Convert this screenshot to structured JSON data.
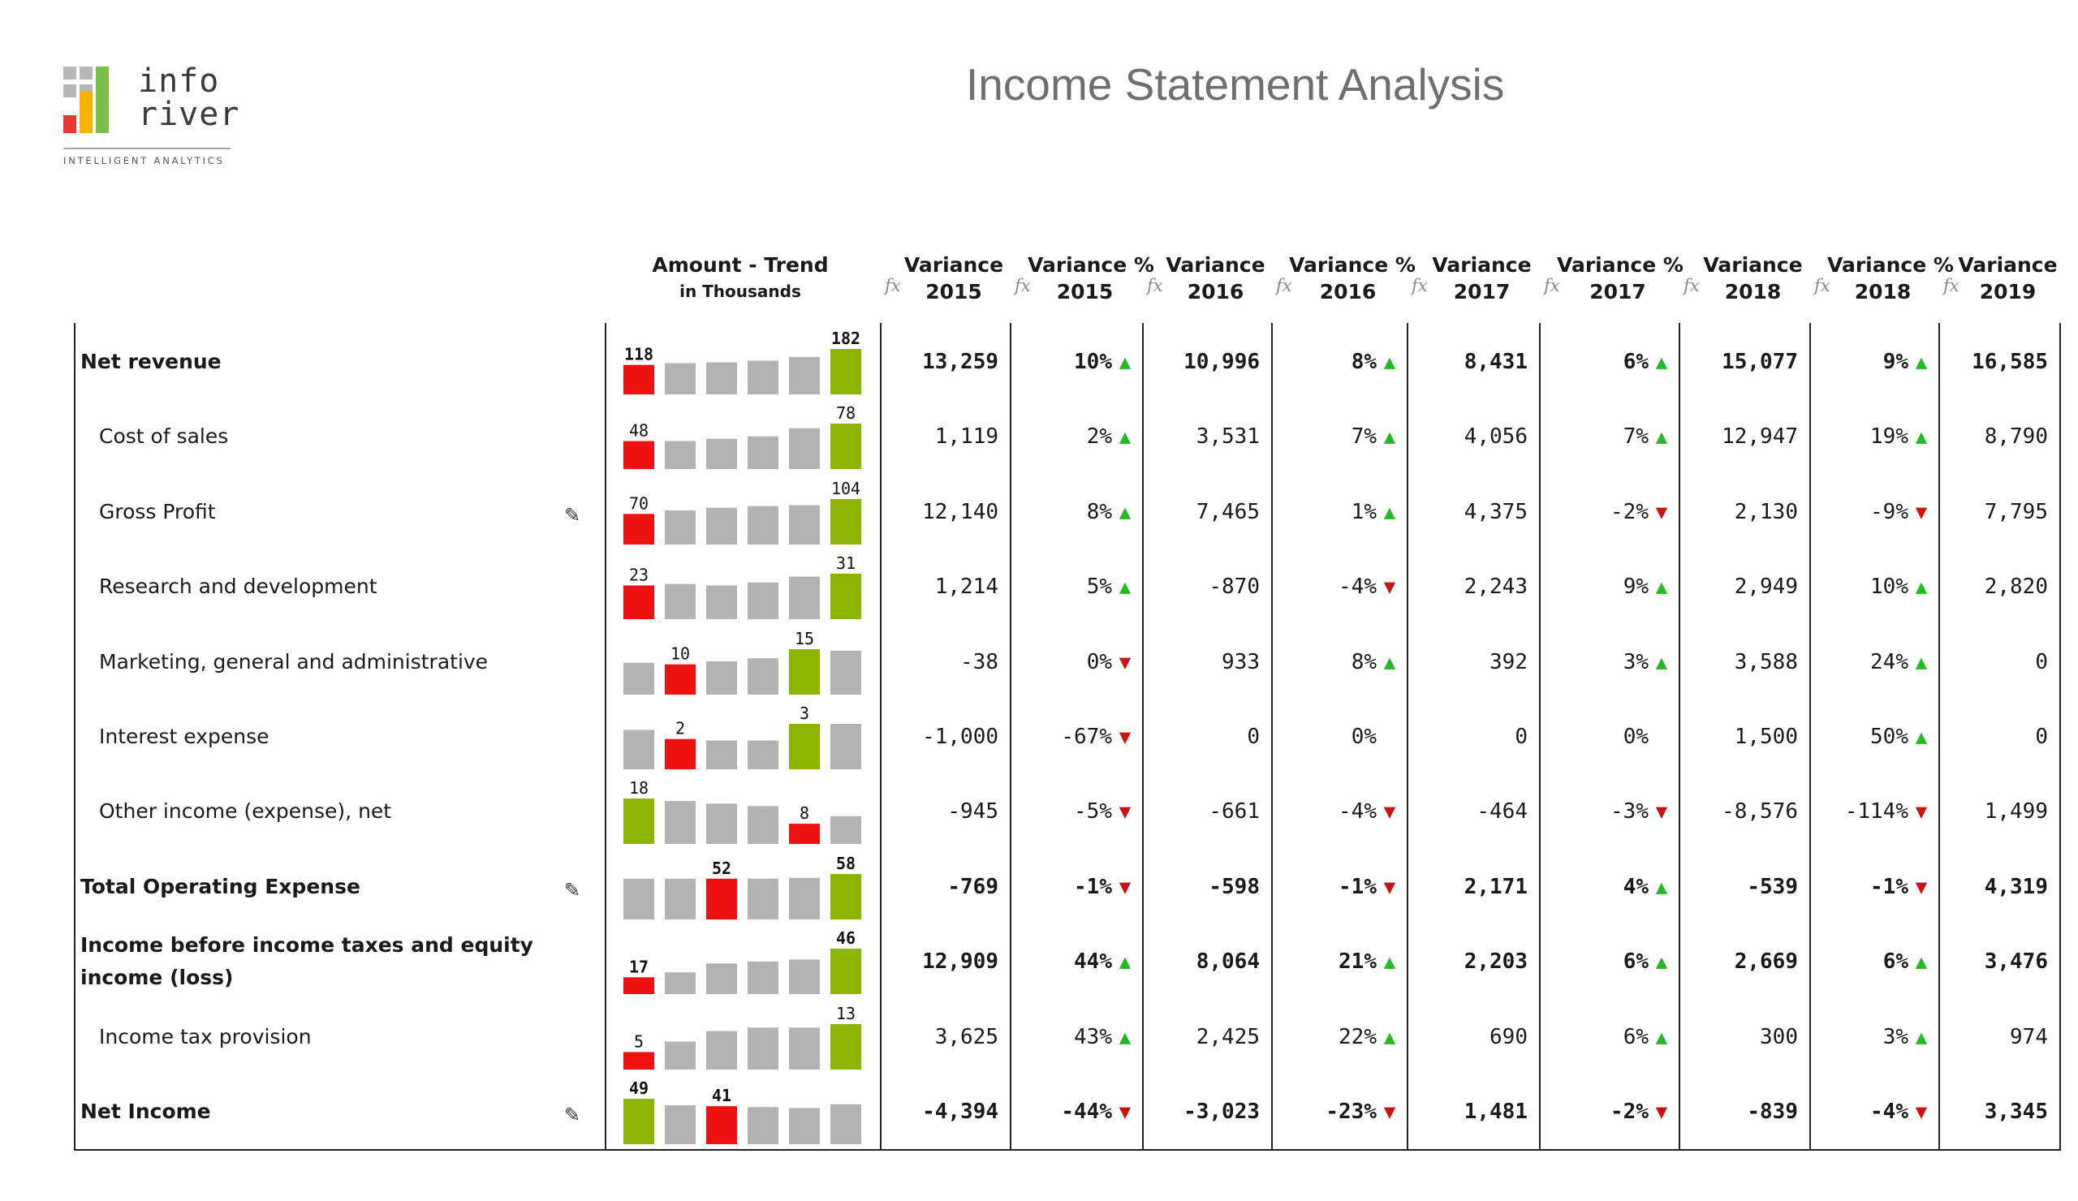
{
  "logo": {
    "word_line1": "info",
    "word_line2": "river",
    "tagline": "INTELLIGENT ANALYTICS"
  },
  "title": "Income Statement Analysis",
  "header": {
    "trend_label": "Amount - Trend",
    "trend_sublabel": "in Thousands",
    "fx_icon": "fx",
    "columns": [
      {
        "line1": "Variance",
        "line2": "2015"
      },
      {
        "line1": "Variance %",
        "line2": "2015"
      },
      {
        "line1": "Variance",
        "line2": "2016"
      },
      {
        "line1": "Variance %",
        "line2": "2016"
      },
      {
        "line1": "Variance",
        "line2": "2017"
      },
      {
        "line1": "Variance %",
        "line2": "2017"
      },
      {
        "line1": "Variance",
        "line2": "2018"
      },
      {
        "line1": "Variance %",
        "line2": "2018"
      },
      {
        "line1": "Variance",
        "line2": "2019"
      }
    ]
  },
  "colors": {
    "bar_gray": "#b3b3b3",
    "bar_red": "#ee1111",
    "bar_green": "#8cb400",
    "arrow_up": "#22bb22",
    "arrow_down": "#cc1111"
  },
  "rows": [
    {
      "label": "Net revenue",
      "bold": true,
      "indent": false,
      "editable": false,
      "trend": {
        "values": [
          118,
          125,
          128,
          135,
          150,
          182
        ],
        "colors": [
          "red",
          "gray",
          "gray",
          "gray",
          "gray",
          "green"
        ],
        "labels": {
          "0": "118",
          "5": "182"
        }
      },
      "cells": [
        "13,259",
        "10%",
        "10,996",
        "8%",
        "8,431",
        "6%",
        "15,077",
        "9%",
        "16,585"
      ],
      "arrows": [
        "up",
        "up",
        "up",
        "up"
      ]
    },
    {
      "label": "Cost of sales",
      "bold": false,
      "indent": true,
      "editable": false,
      "trend": {
        "values": [
          48,
          48,
          52,
          56,
          70,
          78
        ],
        "colors": [
          "red",
          "gray",
          "gray",
          "gray",
          "gray",
          "green"
        ],
        "labels": {
          "0": "48",
          "5": "78"
        }
      },
      "cells": [
        "1,119",
        "2%",
        "3,531",
        "7%",
        "4,056",
        "7%",
        "12,947",
        "19%",
        "8,790"
      ],
      "arrows": [
        "up",
        "up",
        "up",
        "up"
      ]
    },
    {
      "label": "Gross Profit",
      "bold": false,
      "indent": true,
      "editable": true,
      "trend": {
        "values": [
          70,
          78,
          84,
          88,
          90,
          104
        ],
        "colors": [
          "red",
          "gray",
          "gray",
          "gray",
          "gray",
          "green"
        ],
        "labels": {
          "0": "70",
          "5": "104"
        }
      },
      "cells": [
        "12,140",
        "8%",
        "7,465",
        "1%",
        "4,375",
        "-2%",
        "2,130",
        "-9%",
        "7,795"
      ],
      "arrows": [
        "up",
        "up",
        "down",
        "down"
      ]
    },
    {
      "label": "Research and development",
      "bold": false,
      "indent": true,
      "editable": false,
      "trend": {
        "values": [
          23,
          24,
          23,
          25,
          29,
          31
        ],
        "colors": [
          "red",
          "gray",
          "gray",
          "gray",
          "gray",
          "green"
        ],
        "labels": {
          "0": "23",
          "5": "31"
        }
      },
      "cells": [
        "1,214",
        "5%",
        "-870",
        "-4%",
        "2,243",
        "9%",
        "2,949",
        "10%",
        "2,820"
      ],
      "arrows": [
        "up",
        "down",
        "up",
        "up"
      ]
    },
    {
      "label": "Marketing, general and administrative",
      "bold": false,
      "indent": true,
      "editable": false,
      "trend": {
        "values": [
          10.5,
          10,
          11,
          12,
          15,
          14.5
        ],
        "colors": [
          "gray",
          "red",
          "gray",
          "gray",
          "green",
          "gray"
        ],
        "labels": {
          "1": "10",
          "4": "15"
        }
      },
      "cells": [
        "-38",
        "0%",
        "933",
        "8%",
        "392",
        "3%",
        "3,588",
        "24%",
        "0"
      ],
      "arrows": [
        "down",
        "up",
        "up",
        "up"
      ]
    },
    {
      "label": "Interest expense",
      "bold": false,
      "indent": true,
      "editable": false,
      "trend": {
        "values": [
          2.6,
          2,
          1.9,
          1.9,
          3,
          3
        ],
        "colors": [
          "gray",
          "red",
          "gray",
          "gray",
          "green",
          "gray"
        ],
        "labels": {
          "1": "2",
          "4": "3"
        }
      },
      "cells": [
        "-1,000",
        "-67%",
        "0",
        "0%",
        "0",
        "0%",
        "1,500",
        "50%",
        "0"
      ],
      "arrows": [
        "down",
        "",
        "",
        "up"
      ]
    },
    {
      "label": "Other income (expense), net",
      "bold": false,
      "indent": true,
      "editable": false,
      "trend": {
        "values": [
          18,
          17,
          16,
          15,
          8,
          11
        ],
        "colors": [
          "green",
          "gray",
          "gray",
          "gray",
          "red",
          "gray"
        ],
        "labels": {
          "0": "18",
          "4": "8"
        }
      },
      "cells": [
        "-945",
        "-5%",
        "-661",
        "-4%",
        "-464",
        "-3%",
        "-8,576",
        "-114%",
        "1,499"
      ],
      "arrows": [
        "down",
        "down",
        "down",
        "down"
      ]
    },
    {
      "label": "Total Operating Expense",
      "bold": true,
      "indent": false,
      "editable": true,
      "trend": {
        "values": [
          52,
          52,
          52,
          52,
          53,
          58
        ],
        "colors": [
          "gray",
          "gray",
          "red",
          "gray",
          "gray",
          "green"
        ],
        "labels": {
          "2": "52",
          "5": "58"
        }
      },
      "cells": [
        "-769",
        "-1%",
        "-598",
        "-1%",
        "2,171",
        "4%",
        "-539",
        "-1%",
        "4,319"
      ],
      "arrows": [
        "down",
        "down",
        "up",
        "down"
      ]
    },
    {
      "label": "Income before income taxes and equity income (loss)",
      "bold": true,
      "indent": false,
      "editable": false,
      "trend": {
        "values": [
          17,
          22,
          31,
          33,
          35,
          46
        ],
        "colors": [
          "red",
          "gray",
          "gray",
          "gray",
          "gray",
          "green"
        ],
        "labels": {
          "0": "17",
          "5": "46"
        }
      },
      "cells": [
        "12,909",
        "44%",
        "8,064",
        "21%",
        "2,203",
        "6%",
        "2,669",
        "6%",
        "3,476"
      ],
      "arrows": [
        "up",
        "up",
        "up",
        "up"
      ]
    },
    {
      "label": "Income tax provision",
      "bold": false,
      "indent": true,
      "editable": false,
      "trend": {
        "values": [
          5,
          8,
          11,
          12,
          12,
          13
        ],
        "colors": [
          "red",
          "gray",
          "gray",
          "gray",
          "gray",
          "green"
        ],
        "labels": {
          "0": "5",
          "5": "13"
        }
      },
      "cells": [
        "3,625",
        "43%",
        "2,425",
        "22%",
        "690",
        "6%",
        "300",
        "3%",
        "974"
      ],
      "arrows": [
        "up",
        "up",
        "up",
        "up"
      ]
    },
    {
      "label": "Net Income",
      "bold": true,
      "indent": false,
      "editable": true,
      "trend": {
        "values": [
          49,
          42,
          41,
          40,
          39,
          43
        ],
        "colors": [
          "green",
          "gray",
          "red",
          "gray",
          "gray",
          "gray"
        ],
        "labels": {
          "0": "49",
          "2": "41"
        }
      },
      "cells": [
        "-4,394",
        "-44%",
        "-3,023",
        "-23%",
        "1,481",
        "-2%",
        "-839",
        "-4%",
        "3,345"
      ],
      "arrows": [
        "down",
        "down",
        "down",
        "down"
      ]
    }
  ]
}
